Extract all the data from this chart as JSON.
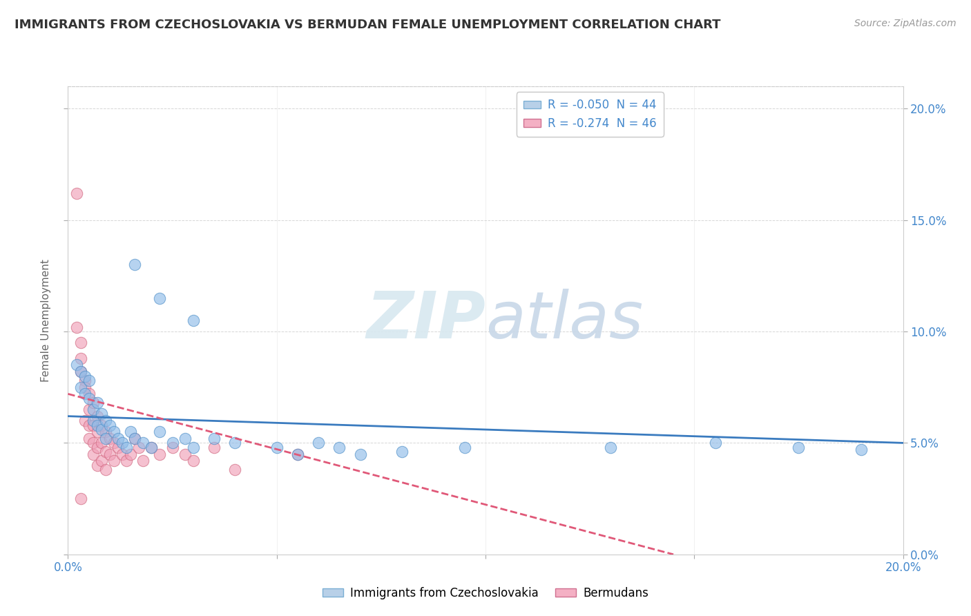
{
  "title": "IMMIGRANTS FROM CZECHOSLOVAKIA VS BERMUDAN FEMALE UNEMPLOYMENT CORRELATION CHART",
  "source": "Source: ZipAtlas.com",
  "ylabel": "Female Unemployment",
  "xlim": [
    0.0,
    0.2
  ],
  "ylim": [
    0.0,
    0.21
  ],
  "right_yticks": [
    0.0,
    0.05,
    0.1,
    0.15,
    0.2
  ],
  "right_yticklabels": [
    "0.0%",
    "5.0%",
    "10.0%",
    "15.0%",
    "20.0%"
  ],
  "blue_color": "#90bce8",
  "pink_color": "#f0a0b8",
  "blue_line_color": "#3a7bbf",
  "pink_line_color": "#e05878",
  "blue_scatter": [
    [
      0.002,
      0.085
    ],
    [
      0.003,
      0.082
    ],
    [
      0.003,
      0.075
    ],
    [
      0.004,
      0.08
    ],
    [
      0.004,
      0.072
    ],
    [
      0.005,
      0.078
    ],
    [
      0.005,
      0.07
    ],
    [
      0.006,
      0.065
    ],
    [
      0.006,
      0.06
    ],
    [
      0.007,
      0.068
    ],
    [
      0.007,
      0.058
    ],
    [
      0.008,
      0.063
    ],
    [
      0.008,
      0.056
    ],
    [
      0.009,
      0.06
    ],
    [
      0.009,
      0.052
    ],
    [
      0.01,
      0.058
    ],
    [
      0.011,
      0.055
    ],
    [
      0.012,
      0.052
    ],
    [
      0.013,
      0.05
    ],
    [
      0.014,
      0.048
    ],
    [
      0.015,
      0.055
    ],
    [
      0.016,
      0.052
    ],
    [
      0.018,
      0.05
    ],
    [
      0.02,
      0.048
    ],
    [
      0.022,
      0.055
    ],
    [
      0.025,
      0.05
    ],
    [
      0.028,
      0.052
    ],
    [
      0.03,
      0.048
    ],
    [
      0.035,
      0.052
    ],
    [
      0.04,
      0.05
    ],
    [
      0.05,
      0.048
    ],
    [
      0.055,
      0.045
    ],
    [
      0.06,
      0.05
    ],
    [
      0.065,
      0.048
    ],
    [
      0.07,
      0.045
    ],
    [
      0.08,
      0.046
    ],
    [
      0.095,
      0.048
    ],
    [
      0.13,
      0.048
    ],
    [
      0.155,
      0.05
    ],
    [
      0.175,
      0.048
    ],
    [
      0.19,
      0.047
    ],
    [
      0.016,
      0.13
    ],
    [
      0.022,
      0.115
    ],
    [
      0.03,
      0.105
    ]
  ],
  "pink_scatter": [
    [
      0.002,
      0.162
    ],
    [
      0.002,
      0.102
    ],
    [
      0.003,
      0.095
    ],
    [
      0.003,
      0.088
    ],
    [
      0.003,
      0.082
    ],
    [
      0.004,
      0.078
    ],
    [
      0.004,
      0.075
    ],
    [
      0.004,
      0.06
    ],
    [
      0.005,
      0.072
    ],
    [
      0.005,
      0.065
    ],
    [
      0.005,
      0.058
    ],
    [
      0.005,
      0.052
    ],
    [
      0.006,
      0.068
    ],
    [
      0.006,
      0.058
    ],
    [
      0.006,
      0.05
    ],
    [
      0.006,
      0.045
    ],
    [
      0.007,
      0.062
    ],
    [
      0.007,
      0.055
    ],
    [
      0.007,
      0.048
    ],
    [
      0.007,
      0.04
    ],
    [
      0.008,
      0.058
    ],
    [
      0.008,
      0.05
    ],
    [
      0.008,
      0.042
    ],
    [
      0.009,
      0.055
    ],
    [
      0.009,
      0.046
    ],
    [
      0.009,
      0.038
    ],
    [
      0.01,
      0.052
    ],
    [
      0.01,
      0.045
    ],
    [
      0.011,
      0.05
    ],
    [
      0.011,
      0.042
    ],
    [
      0.012,
      0.048
    ],
    [
      0.013,
      0.045
    ],
    [
      0.014,
      0.042
    ],
    [
      0.015,
      0.045
    ],
    [
      0.016,
      0.052
    ],
    [
      0.017,
      0.048
    ],
    [
      0.018,
      0.042
    ],
    [
      0.02,
      0.048
    ],
    [
      0.022,
      0.045
    ],
    [
      0.025,
      0.048
    ],
    [
      0.028,
      0.045
    ],
    [
      0.03,
      0.042
    ],
    [
      0.035,
      0.048
    ],
    [
      0.04,
      0.038
    ],
    [
      0.055,
      0.045
    ],
    [
      0.003,
      0.025
    ]
  ],
  "blue_line_x": [
    0.0,
    0.2
  ],
  "blue_line_y": [
    0.062,
    0.05
  ],
  "pink_line_x": [
    0.0,
    0.145
  ],
  "pink_line_y": [
    0.072,
    0.0
  ]
}
